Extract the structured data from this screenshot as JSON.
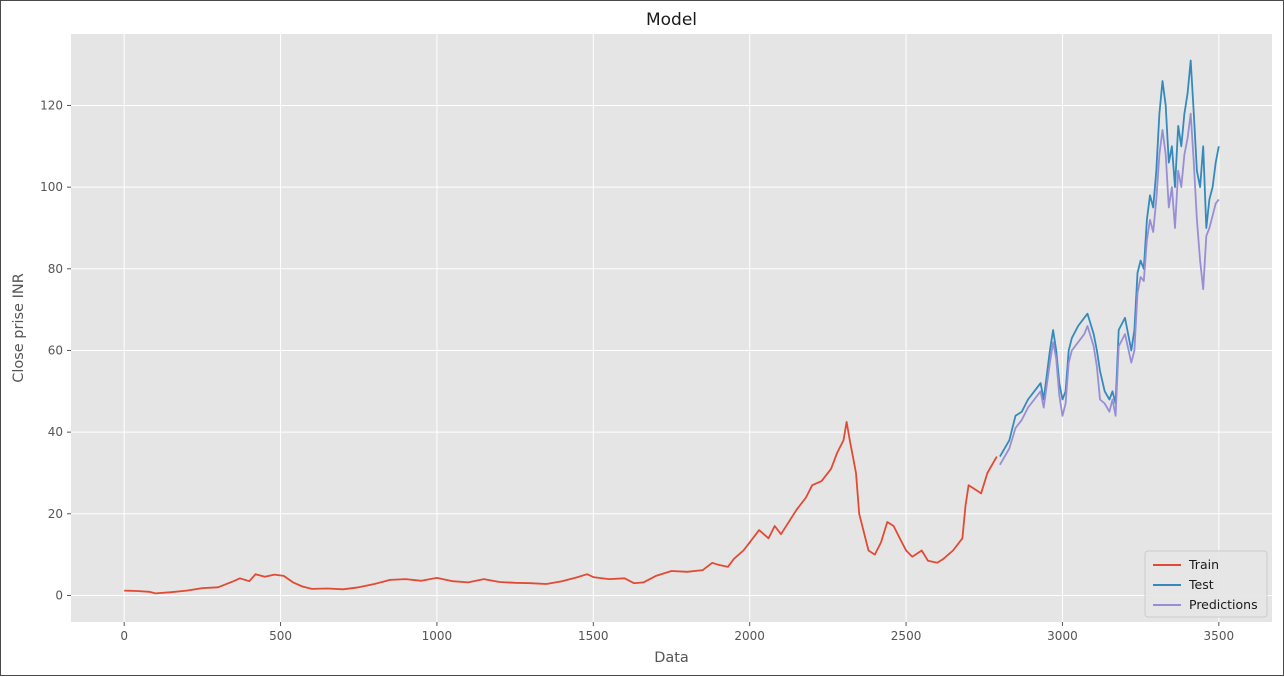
{
  "chart_data": {
    "type": "line",
    "title": "Model",
    "xlabel": "Data",
    "ylabel": "Close prise INR",
    "xlim": [
      -170,
      3670
    ],
    "ylim": [
      -6.5,
      137.5
    ],
    "xticks": [
      0,
      500,
      1000,
      1500,
      2000,
      2500,
      3000,
      3500
    ],
    "yticks": [
      0,
      20,
      40,
      60,
      80,
      100,
      120
    ],
    "grid": true,
    "legend_position": "lower-right",
    "series": [
      {
        "name": "Train",
        "color": "#E24A33",
        "points": [
          [
            0,
            1.2
          ],
          [
            40,
            1.1
          ],
          [
            80,
            0.9
          ],
          [
            100,
            0.5
          ],
          [
            150,
            0.8
          ],
          [
            200,
            1.2
          ],
          [
            250,
            1.8
          ],
          [
            300,
            2.0
          ],
          [
            350,
            3.5
          ],
          [
            370,
            4.2
          ],
          [
            400,
            3.5
          ],
          [
            420,
            5.2
          ],
          [
            450,
            4.6
          ],
          [
            480,
            5.1
          ],
          [
            510,
            4.8
          ],
          [
            540,
            3.2
          ],
          [
            570,
            2.2
          ],
          [
            600,
            1.6
          ],
          [
            650,
            1.7
          ],
          [
            700,
            1.5
          ],
          [
            750,
            2.0
          ],
          [
            800,
            2.8
          ],
          [
            850,
            3.8
          ],
          [
            900,
            4.0
          ],
          [
            950,
            3.6
          ],
          [
            1000,
            4.3
          ],
          [
            1050,
            3.5
          ],
          [
            1100,
            3.2
          ],
          [
            1150,
            4.0
          ],
          [
            1200,
            3.3
          ],
          [
            1250,
            3.1
          ],
          [
            1300,
            3.0
          ],
          [
            1350,
            2.8
          ],
          [
            1400,
            3.5
          ],
          [
            1450,
            4.5
          ],
          [
            1480,
            5.2
          ],
          [
            1500,
            4.5
          ],
          [
            1550,
            4.0
          ],
          [
            1600,
            4.2
          ],
          [
            1630,
            3.0
          ],
          [
            1660,
            3.2
          ],
          [
            1700,
            4.8
          ],
          [
            1750,
            6.0
          ],
          [
            1800,
            5.8
          ],
          [
            1850,
            6.2
          ],
          [
            1880,
            8.0
          ],
          [
            1900,
            7.5
          ],
          [
            1930,
            7.0
          ],
          [
            1950,
            9.0
          ],
          [
            1980,
            11.0
          ],
          [
            2000,
            13.0
          ],
          [
            2030,
            16.0
          ],
          [
            2060,
            14.0
          ],
          [
            2080,
            17.0
          ],
          [
            2100,
            15.0
          ],
          [
            2150,
            21.0
          ],
          [
            2180,
            24.0
          ],
          [
            2200,
            27.0
          ],
          [
            2230,
            28.0
          ],
          [
            2260,
            31.0
          ],
          [
            2280,
            35.0
          ],
          [
            2300,
            38.0
          ],
          [
            2310,
            42.5
          ],
          [
            2320,
            38.0
          ],
          [
            2330,
            34.0
          ],
          [
            2340,
            30.0
          ],
          [
            2350,
            20.0
          ],
          [
            2360,
            17.0
          ],
          [
            2380,
            11.0
          ],
          [
            2400,
            10.0
          ],
          [
            2420,
            13.0
          ],
          [
            2440,
            18.0
          ],
          [
            2460,
            17.0
          ],
          [
            2480,
            14.0
          ],
          [
            2500,
            11.0
          ],
          [
            2520,
            9.5
          ],
          [
            2550,
            11.0
          ],
          [
            2570,
            8.5
          ],
          [
            2600,
            8.0
          ],
          [
            2620,
            9.0
          ],
          [
            2650,
            11.0
          ],
          [
            2680,
            14.0
          ],
          [
            2690,
            22.0
          ],
          [
            2700,
            27.0
          ],
          [
            2720,
            26.0
          ],
          [
            2740,
            25.0
          ],
          [
            2760,
            30.0
          ],
          [
            2790,
            34.0
          ]
        ]
      },
      {
        "name": "Test",
        "color": "#348ABD",
        "points": [
          [
            2800,
            34.0
          ],
          [
            2830,
            38.0
          ],
          [
            2850,
            44.0
          ],
          [
            2870,
            45.0
          ],
          [
            2890,
            48.0
          ],
          [
            2910,
            50.0
          ],
          [
            2930,
            52.0
          ],
          [
            2940,
            48.0
          ],
          [
            2960,
            60.0
          ],
          [
            2970,
            65.0
          ],
          [
            2980,
            60.0
          ],
          [
            2990,
            52.0
          ],
          [
            3000,
            48.0
          ],
          [
            3010,
            50.0
          ],
          [
            3020,
            60.0
          ],
          [
            3030,
            63.0
          ],
          [
            3050,
            66.0
          ],
          [
            3070,
            68.0
          ],
          [
            3080,
            69.0
          ],
          [
            3100,
            64.0
          ],
          [
            3110,
            60.0
          ],
          [
            3120,
            55.0
          ],
          [
            3135,
            50.0
          ],
          [
            3150,
            48.0
          ],
          [
            3160,
            50.0
          ],
          [
            3170,
            47.0
          ],
          [
            3180,
            65.0
          ],
          [
            3200,
            68.0
          ],
          [
            3220,
            60.0
          ],
          [
            3230,
            65.0
          ],
          [
            3240,
            79.0
          ],
          [
            3250,
            82.0
          ],
          [
            3260,
            80.0
          ],
          [
            3270,
            92.0
          ],
          [
            3280,
            98.0
          ],
          [
            3290,
            95.0
          ],
          [
            3300,
            104.0
          ],
          [
            3310,
            118.0
          ],
          [
            3320,
            126.0
          ],
          [
            3330,
            120.0
          ],
          [
            3340,
            106.0
          ],
          [
            3350,
            110.0
          ],
          [
            3360,
            100.0
          ],
          [
            3370,
            115.0
          ],
          [
            3380,
            110.0
          ],
          [
            3390,
            118.0
          ],
          [
            3400,
            123.0
          ],
          [
            3410,
            131.0
          ],
          [
            3420,
            118.0
          ],
          [
            3430,
            104.0
          ],
          [
            3440,
            100.0
          ],
          [
            3450,
            110.0
          ],
          [
            3460,
            90.0
          ],
          [
            3470,
            97.0
          ],
          [
            3480,
            100.0
          ],
          [
            3490,
            106.0
          ],
          [
            3500,
            110.0
          ]
        ]
      },
      {
        "name": "Predictions",
        "color": "#988ED5",
        "points": [
          [
            2800,
            32.0
          ],
          [
            2830,
            36.0
          ],
          [
            2850,
            41.0
          ],
          [
            2870,
            43.0
          ],
          [
            2890,
            46.0
          ],
          [
            2910,
            48.0
          ],
          [
            2930,
            50.0
          ],
          [
            2940,
            46.0
          ],
          [
            2960,
            57.0
          ],
          [
            2970,
            62.0
          ],
          [
            2980,
            58.0
          ],
          [
            2990,
            49.0
          ],
          [
            3000,
            44.0
          ],
          [
            3010,
            47.0
          ],
          [
            3020,
            57.0
          ],
          [
            3030,
            60.0
          ],
          [
            3050,
            62.0
          ],
          [
            3070,
            64.0
          ],
          [
            3080,
            66.0
          ],
          [
            3100,
            61.0
          ],
          [
            3110,
            56.0
          ],
          [
            3120,
            48.0
          ],
          [
            3135,
            47.0
          ],
          [
            3150,
            45.0
          ],
          [
            3160,
            48.0
          ],
          [
            3170,
            44.0
          ],
          [
            3180,
            61.0
          ],
          [
            3200,
            64.0
          ],
          [
            3220,
            57.0
          ],
          [
            3230,
            60.0
          ],
          [
            3240,
            74.0
          ],
          [
            3250,
            78.0
          ],
          [
            3260,
            77.0
          ],
          [
            3270,
            87.0
          ],
          [
            3280,
            92.0
          ],
          [
            3290,
            89.0
          ],
          [
            3300,
            97.0
          ],
          [
            3310,
            108.0
          ],
          [
            3320,
            114.0
          ],
          [
            3330,
            108.0
          ],
          [
            3340,
            95.0
          ],
          [
            3350,
            100.0
          ],
          [
            3360,
            90.0
          ],
          [
            3370,
            104.0
          ],
          [
            3380,
            100.0
          ],
          [
            3390,
            108.0
          ],
          [
            3400,
            112.0
          ],
          [
            3410,
            118.0
          ],
          [
            3420,
            106.0
          ],
          [
            3430,
            92.0
          ],
          [
            3440,
            82.0
          ],
          [
            3450,
            75.0
          ],
          [
            3460,
            88.0
          ],
          [
            3470,
            90.0
          ],
          [
            3480,
            93.0
          ],
          [
            3490,
            96.0
          ],
          [
            3500,
            97.0
          ]
        ]
      }
    ]
  }
}
